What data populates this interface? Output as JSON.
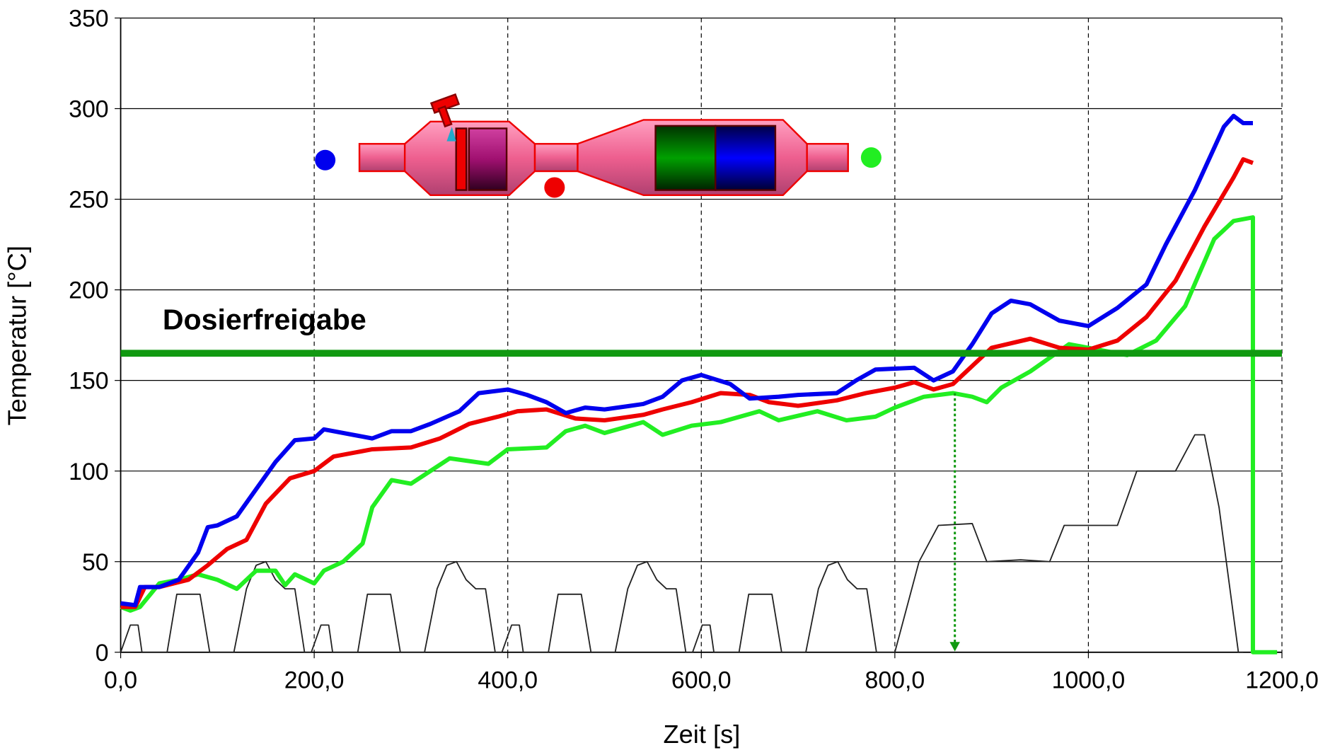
{
  "chart_data": {
    "type": "line",
    "xlabel": "Zeit [s]",
    "ylabel": "Temperatur [°C]",
    "xlim": [
      0,
      1200
    ],
    "ylim": [
      0,
      350
    ],
    "xticks": [
      {
        "value": 0,
        "label": "0,0"
      },
      {
        "value": 200,
        "label": "200,0"
      },
      {
        "value": 400,
        "label": "400,0"
      },
      {
        "value": 600,
        "label": "600,0"
      },
      {
        "value": 800,
        "label": "800,0"
      },
      {
        "value": 1000,
        "label": "1000,0"
      },
      {
        "value": 1200,
        "label": "1200,0"
      }
    ],
    "yticks": [
      0,
      50,
      100,
      150,
      200,
      250,
      300,
      350
    ],
    "grid": true,
    "threshold": {
      "value": 165,
      "label": "Dosierfreigabe",
      "color": "#119911"
    },
    "arrow": {
      "x": 862,
      "from": 143,
      "to": 0,
      "color": "#119911"
    },
    "series": [
      {
        "color": "#0000ee",
        "x": [
          0,
          15,
          20,
          40,
          60,
          80,
          90,
          100,
          120,
          140,
          160,
          180,
          200,
          210,
          240,
          260,
          280,
          300,
          320,
          350,
          370,
          400,
          420,
          440,
          460,
          480,
          500,
          540,
          560,
          580,
          600,
          630,
          650,
          680,
          700,
          740,
          760,
          780,
          820,
          840,
          860,
          880,
          900,
          920,
          940,
          970,
          1000,
          1030,
          1060,
          1080,
          1110,
          1140,
          1150,
          1160,
          1170
        ],
        "values": [
          27,
          26,
          36,
          36,
          40,
          55,
          69,
          70,
          75,
          90,
          105,
          117,
          118,
          123,
          120,
          118,
          122,
          122,
          126,
          133,
          143,
          145,
          142,
          138,
          132,
          135,
          134,
          137,
          141,
          150,
          153,
          148,
          140,
          141,
          142,
          143,
          150,
          156,
          157,
          150,
          155,
          170,
          187,
          194,
          192,
          183,
          180,
          190,
          203,
          225,
          255,
          290,
          296,
          292,
          292
        ]
      },
      {
        "color": "#ee0000",
        "x": [
          0,
          15,
          25,
          40,
          70,
          90,
          110,
          130,
          150,
          175,
          200,
          220,
          240,
          260,
          300,
          330,
          360,
          390,
          410,
          440,
          470,
          500,
          540,
          560,
          590,
          620,
          650,
          670,
          700,
          740,
          770,
          800,
          820,
          840,
          860,
          880,
          900,
          940,
          970,
          1000,
          1030,
          1060,
          1090,
          1120,
          1150,
          1160,
          1170
        ],
        "values": [
          25,
          25,
          36,
          36,
          40,
          48,
          57,
          62,
          82,
          96,
          100,
          108,
          110,
          112,
          113,
          118,
          126,
          130,
          133,
          134,
          129,
          128,
          131,
          134,
          138,
          143,
          142,
          138,
          136,
          139,
          143,
          146,
          149,
          145,
          148,
          158,
          168,
          173,
          168,
          167,
          172,
          185,
          205,
          235,
          262,
          272,
          270
        ]
      },
      {
        "color": "#22ee22",
        "x": [
          0,
          10,
          20,
          40,
          60,
          80,
          100,
          120,
          140,
          160,
          170,
          180,
          200,
          210,
          230,
          250,
          260,
          280,
          300,
          320,
          340,
          380,
          400,
          440,
          460,
          480,
          500,
          540,
          560,
          590,
          620,
          660,
          680,
          720,
          750,
          780,
          800,
          830,
          860,
          880,
          895,
          910,
          940,
          980,
          1000,
          1040,
          1070,
          1100,
          1130,
          1150,
          1170,
          1170,
          1195
        ],
        "values": [
          25,
          23,
          25,
          38,
          40,
          43,
          40,
          35,
          45,
          45,
          37,
          43,
          38,
          45,
          50,
          60,
          80,
          95,
          93,
          100,
          107,
          104,
          112,
          113,
          122,
          125,
          121,
          127,
          120,
          125,
          127,
          133,
          128,
          133,
          128,
          130,
          135,
          141,
          143,
          141,
          138,
          146,
          155,
          170,
          168,
          164,
          172,
          191,
          228,
          238,
          240,
          0,
          0
        ]
      },
      {
        "color": "#222222",
        "x": [
          0,
          10,
          18,
          22,
          48,
          58,
          82,
          92,
          117,
          130,
          140,
          150,
          160,
          170,
          180,
          190,
          197,
          207,
          215,
          219,
          245,
          255,
          279,
          289,
          314,
          327,
          337,
          347,
          357,
          367,
          377,
          387,
          394,
          404,
          412,
          416,
          442,
          452,
          476,
          486,
          511,
          524,
          534,
          544,
          554,
          564,
          574,
          584,
          591,
          601,
          609,
          613,
          639,
          649,
          673,
          683,
          708,
          721,
          731,
          741,
          751,
          761,
          771,
          781,
          800,
          825,
          845,
          880,
          895,
          930,
          960,
          975,
          1030,
          1050,
          1090,
          1110,
          1120,
          1135,
          1155,
          1160
        ],
        "values": [
          0,
          15,
          15,
          0,
          0,
          32,
          32,
          0,
          0,
          35,
          48,
          50,
          40,
          35,
          35,
          0,
          0,
          15,
          15,
          0,
          0,
          32,
          32,
          0,
          0,
          35,
          48,
          50,
          40,
          35,
          35,
          0,
          0,
          15,
          15,
          0,
          0,
          32,
          32,
          0,
          0,
          35,
          48,
          50,
          40,
          35,
          35,
          0,
          0,
          15,
          15,
          0,
          0,
          32,
          32,
          0,
          0,
          35,
          48,
          50,
          40,
          35,
          35,
          0,
          0,
          50,
          70,
          71,
          50,
          51,
          50,
          70,
          70,
          100,
          100,
          120,
          120,
          80,
          0,
          0
        ]
      }
    ]
  }
}
